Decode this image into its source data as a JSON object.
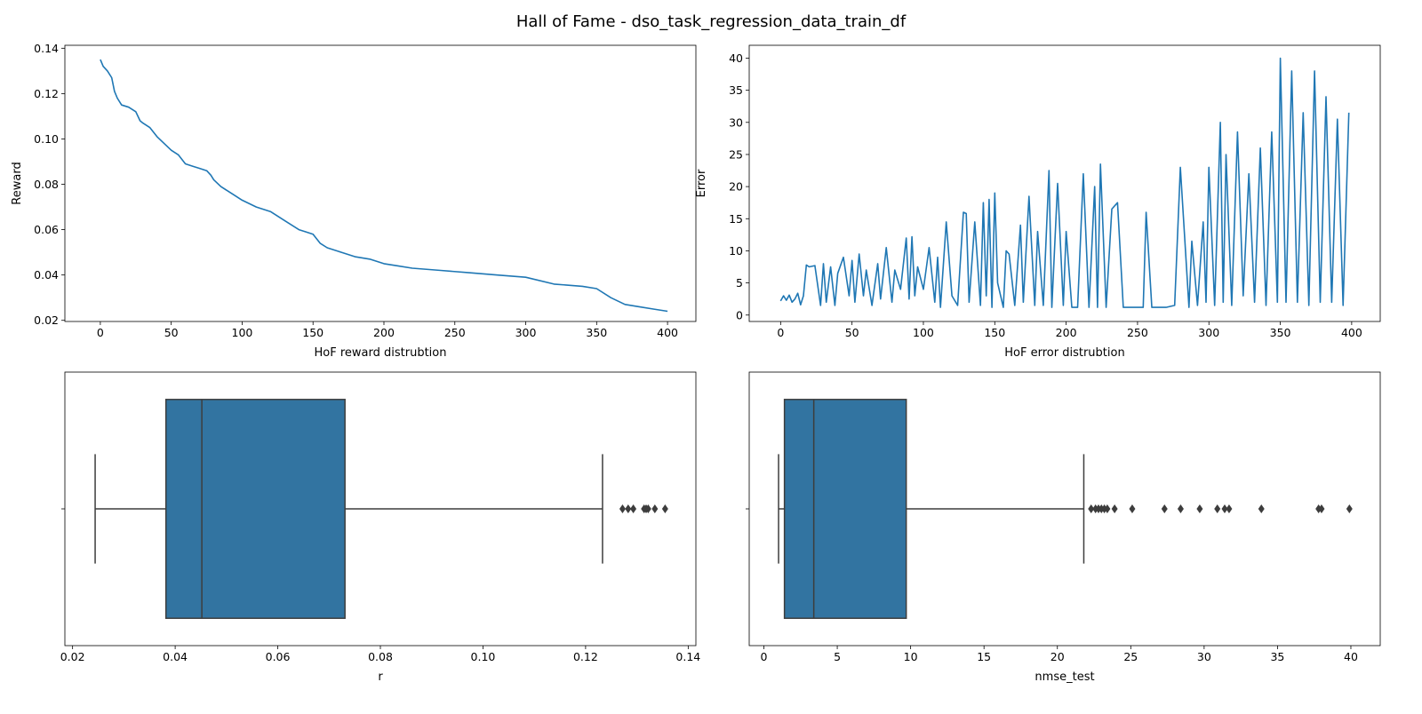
{
  "figure": {
    "title": "Hall of Fame - dso_task_regression_data_train_df"
  },
  "chart_data": [
    {
      "type": "line",
      "xlabel": "HoF reward distrubtion",
      "ylabel": "Reward",
      "xlim": [
        -25,
        420
      ],
      "ylim": [
        0.0195,
        0.1413
      ],
      "xticks": [
        0,
        50,
        100,
        150,
        200,
        250,
        300,
        350,
        400
      ],
      "yticks": [
        0.02,
        0.04,
        0.06,
        0.08,
        0.1,
        0.12,
        0.14
      ],
      "ytick_labels": [
        "0.02",
        "0.04",
        "0.06",
        "0.08",
        "0.10",
        "0.12",
        "0.14"
      ],
      "color": "#1f77b4",
      "x": [
        0,
        2,
        5,
        8,
        10,
        12,
        15,
        20,
        25,
        28,
        30,
        35,
        40,
        45,
        50,
        55,
        60,
        65,
        70,
        75,
        78,
        80,
        85,
        90,
        95,
        100,
        110,
        120,
        130,
        140,
        145,
        150,
        155,
        160,
        170,
        180,
        190,
        200,
        210,
        220,
        240,
        260,
        280,
        300,
        320,
        340,
        350,
        360,
        370,
        380,
        390,
        400
      ],
      "y": [
        0.135,
        0.132,
        0.13,
        0.127,
        0.121,
        0.118,
        0.115,
        0.114,
        0.112,
        0.108,
        0.107,
        0.105,
        0.101,
        0.098,
        0.095,
        0.093,
        0.089,
        0.088,
        0.087,
        0.086,
        0.084,
        0.082,
        0.079,
        0.077,
        0.075,
        0.073,
        0.07,
        0.068,
        0.064,
        0.06,
        0.059,
        0.058,
        0.054,
        0.052,
        0.05,
        0.048,
        0.047,
        0.045,
        0.044,
        0.043,
        0.042,
        0.041,
        0.04,
        0.039,
        0.036,
        0.035,
        0.034,
        0.03,
        0.027,
        0.026,
        0.025,
        0.024
      ]
    },
    {
      "type": "line",
      "xlabel": "HoF error distrubtion",
      "ylabel": "Error",
      "xlim": [
        -22,
        420
      ],
      "ylim": [
        -1.0,
        42.0
      ],
      "xticks": [
        0,
        50,
        100,
        150,
        200,
        250,
        300,
        350,
        400
      ],
      "yticks": [
        0,
        5,
        10,
        15,
        20,
        25,
        30,
        35,
        40
      ],
      "color": "#1f77b4",
      "x": [
        0,
        2,
        4,
        6,
        8,
        10,
        12,
        14,
        16,
        18,
        20,
        24,
        28,
        30,
        32,
        35,
        38,
        40,
        44,
        48,
        50,
        52,
        55,
        58,
        60,
        64,
        68,
        70,
        74,
        78,
        80,
        84,
        88,
        90,
        92,
        94,
        96,
        100,
        104,
        108,
        110,
        112,
        116,
        120,
        124,
        128,
        130,
        132,
        136,
        140,
        142,
        144,
        146,
        148,
        150,
        152,
        156,
        158,
        160,
        164,
        168,
        170,
        174,
        178,
        180,
        184,
        188,
        190,
        194,
        198,
        200,
        204,
        208,
        212,
        216,
        220,
        222,
        224,
        228,
        232,
        236,
        240,
        244,
        246,
        250,
        254,
        256,
        260,
        266,
        270,
        276,
        280,
        286,
        288,
        292,
        296,
        298,
        300,
        304,
        308,
        310,
        312,
        316,
        320,
        324,
        328,
        332,
        336,
        340,
        344,
        348,
        350,
        354,
        358,
        362,
        366,
        370,
        374,
        378,
        382,
        386,
        390,
        394,
        398
      ],
      "y": [
        2.2,
        3.0,
        2.3,
        3.1,
        2.0,
        2.5,
        3.4,
        1.6,
        3.0,
        7.8,
        7.5,
        7.7,
        1.5,
        8.0,
        2.0,
        7.5,
        1.5,
        6.5,
        9.0,
        3.0,
        8.5,
        2.0,
        9.5,
        3.0,
        7.0,
        1.5,
        8.0,
        2.5,
        10.5,
        2.0,
        7.0,
        4.0,
        12.0,
        2.5,
        12.2,
        3.0,
        7.5,
        4.0,
        10.5,
        2.0,
        9.0,
        1.2,
        14.5,
        3.0,
        1.5,
        16.0,
        15.8,
        2.0,
        14.5,
        1.5,
        17.5,
        3.0,
        18.0,
        1.2,
        19.0,
        5.0,
        1.2,
        10.0,
        9.5,
        1.5,
        14.0,
        2.0,
        18.5,
        1.5,
        13.0,
        1.5,
        22.5,
        1.2,
        20.5,
        1.5,
        13.0,
        1.2,
        1.2,
        22.0,
        1.2,
        20.0,
        1.2,
        23.5,
        1.2,
        16.5,
        17.5,
        1.2,
        1.2,
        1.2,
        1.2,
        1.2,
        16.0,
        1.2,
        1.2,
        1.2,
        1.5,
        23.0,
        1.2,
        11.5,
        1.5,
        14.5,
        2.0,
        23.0,
        1.5,
        30.0,
        2.0,
        25.0,
        1.5,
        28.5,
        3.0,
        22.0,
        2.0,
        26.0,
        1.5,
        28.5,
        2.0,
        40.0,
        2.0,
        38.0,
        2.0,
        31.5,
        1.5,
        38.0,
        2.0,
        34.0,
        2.0,
        30.5,
        1.5,
        31.5
      ]
    },
    {
      "type": "box",
      "xlabel": "r",
      "xlim": [
        0.0185,
        0.1415
      ],
      "xticks": [
        0.02,
        0.04,
        0.06,
        0.08,
        0.1,
        0.12,
        0.14
      ],
      "xtick_labels": [
        "0.02",
        "0.04",
        "0.06",
        "0.08",
        "0.10",
        "0.12",
        "0.14"
      ],
      "color": "#3274a1",
      "whisker_low": 0.0244,
      "q1": 0.0382,
      "median": 0.0452,
      "q3": 0.0731,
      "whisker_high": 0.1233,
      "outliers": [
        0.1272,
        0.1283,
        0.1293,
        0.1314,
        0.1318,
        0.1322,
        0.1335,
        0.1355
      ]
    },
    {
      "type": "box",
      "xlabel": "nmse_test",
      "xlim": [
        -1.0,
        42.0
      ],
      "xticks": [
        0,
        5,
        10,
        15,
        20,
        25,
        30,
        35,
        40
      ],
      "color": "#3274a1",
      "whisker_low": 1.0,
      "q1": 1.4,
      "median": 3.4,
      "q3": 9.7,
      "whisker_high": 21.8,
      "outliers": [
        22.3,
        22.6,
        22.8,
        23.0,
        23.2,
        23.4,
        23.9,
        25.1,
        27.3,
        28.4,
        29.7,
        30.9,
        31.4,
        31.7,
        33.9,
        37.8,
        38.0,
        39.9
      ]
    }
  ]
}
